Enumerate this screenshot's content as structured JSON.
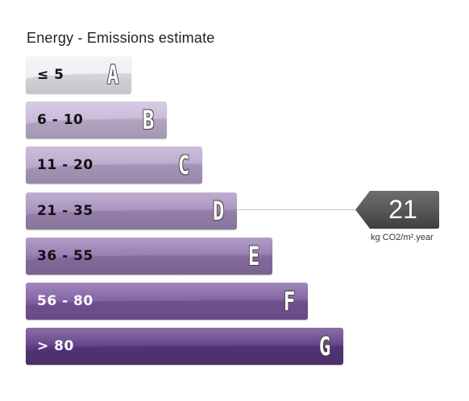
{
  "chart_data": {
    "type": "bar",
    "title": "Energy - Emissions estimate",
    "categories": [
      "A",
      "B",
      "C",
      "D",
      "E",
      "F",
      "G"
    ],
    "ranges": [
      "≤ 5",
      "6 - 10",
      "11 - 20",
      "21 - 35",
      "36 - 55",
      "56 - 80",
      "> 80"
    ],
    "colors": [
      "#f0eef3",
      "#c7b8d8",
      "#b9a6cd",
      "#a68ebd",
      "#9477b0",
      "#7d5aa0",
      "#5c3983"
    ],
    "text_colors": [
      "#111111",
      "#111111",
      "#111111",
      "#111111",
      "#111111",
      "#ffffff",
      "#ffffff"
    ],
    "value": 21,
    "value_rating": "D",
    "unit": "kg CO2/m².year"
  }
}
